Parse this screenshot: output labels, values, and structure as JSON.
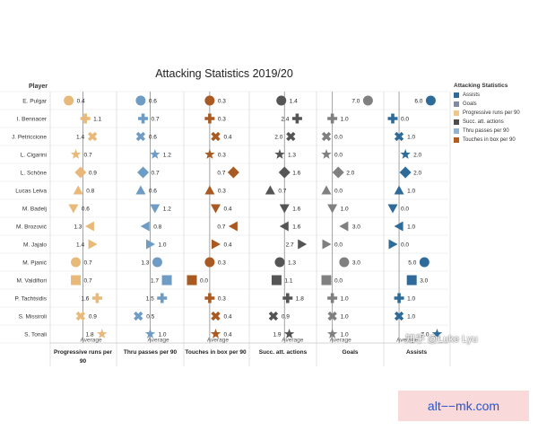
{
  "page": {
    "title": "Attacking Statistics 2019/20",
    "player_header": "Player",
    "average_label": "Average",
    "watermark": "知乎 @Luke Lyu",
    "stamp": "alt−−mk.com"
  },
  "legend": {
    "title": "Attacking Statistics",
    "items": [
      {
        "label": "Assists",
        "color": "#2f6b98",
        "icon": "square-swatch"
      },
      {
        "label": "Goals",
        "color": "#7f8ba0",
        "icon": "square-swatch"
      },
      {
        "label": "Progressive runs per 90",
        "color": "#f2c58a",
        "icon": "square-swatch"
      },
      {
        "label": "Succ. att. actions",
        "color": "#4d4d4d",
        "icon": "square-swatch"
      },
      {
        "label": "Thru passes per 90",
        "color": "#8fb3d3",
        "icon": "square-swatch"
      },
      {
        "label": "Touches in box per 90",
        "color": "#b45c1e",
        "icon": "square-swatch"
      }
    ]
  },
  "chart_data": {
    "type": "scatter",
    "title": "Attacking Statistics 2019/20",
    "players": [
      "E. Pulgar",
      "I. Bennacer",
      "J. Petriccione",
      "L. Cigarini",
      "L. Schöne",
      "Lucas Leiva",
      "M. Badelj",
      "M. Brozović",
      "M. Jajalo",
      "M. Pjanić",
      "M. Valdifiori",
      "P. Tachtsidis",
      "S. Missiroli",
      "S. Tonali"
    ],
    "shapes": [
      "circle",
      "plus",
      "cross",
      "star",
      "diamond",
      "triangle-up",
      "triangle-down",
      "triangle-left",
      "triangle-right",
      "circle",
      "square",
      "plus",
      "cross",
      "star"
    ],
    "columns": [
      {
        "name": "Progressive runs per 90",
        "color": "#e9b97a",
        "values": [
          0.4,
          1.1,
          1.4,
          0.7,
          0.9,
          0.8,
          0.6,
          1.3,
          1.4,
          0.7,
          0.7,
          1.6,
          0.9,
          1.8
        ],
        "labels": [
          "0.4",
          "1.1",
          "1.4",
          "0.7",
          "0.9",
          "0.8",
          "0.6",
          "1.3",
          "1.4",
          "0.7",
          "0.7",
          "1.6",
          "0.9",
          "1.8"
        ],
        "average": 1.0,
        "xlim": [
          0,
          2.0
        ]
      },
      {
        "name": "Thru passes per 90",
        "color": "#6f9cc4",
        "values": [
          0.6,
          0.7,
          0.6,
          1.2,
          0.7,
          0.6,
          1.2,
          0.8,
          1.0,
          1.3,
          1.7,
          1.5,
          0.5,
          1.0
        ],
        "labels": [
          "0.6",
          "0.7",
          "0.6",
          "1.2",
          "0.7",
          "0.6",
          "1.2",
          "0.8",
          "1.0",
          "1.3",
          "1.7",
          "1.5",
          "0.5",
          "1.0"
        ],
        "average": 1.0,
        "xlim": [
          0,
          2.0
        ]
      },
      {
        "name": "Touches in box per 90",
        "color": "#a85a22",
        "values": [
          0.3,
          0.3,
          0.4,
          0.3,
          0.7,
          0.3,
          0.4,
          0.7,
          0.4,
          0.3,
          0.0,
          0.3,
          0.4,
          0.4
        ],
        "labels": [
          "0.3",
          "0.3",
          "0.4",
          "0.3",
          "0.7",
          "0.3",
          "0.4",
          "0.7",
          "0.4",
          "0.3",
          "0.0",
          "0.3",
          "0.4",
          "0.4"
        ],
        "average": 0.3,
        "xlim": [
          0,
          0.8
        ]
      },
      {
        "name": "Succ. att. actions",
        "color": "#555555",
        "values": [
          1.4,
          2.4,
          2.0,
          1.3,
          1.6,
          0.7,
          1.6,
          1.6,
          2.7,
          1.3,
          1.1,
          1.8,
          0.9,
          1.9
        ],
        "labels": [
          "1.4",
          "2.4",
          "2.0",
          "1.3",
          "1.6",
          "0.7",
          "1.6",
          "1.6",
          "2.7",
          "1.3",
          "1.1",
          "1.8",
          "0.9",
          "1.9"
        ],
        "average": 1.6,
        "xlim": [
          0,
          3.0
        ]
      },
      {
        "name": "Goals",
        "color": "#808080",
        "values": [
          7.0,
          1.0,
          0.0,
          0.0,
          2.0,
          0.0,
          1.0,
          3.0,
          0.0,
          3.0,
          0.0,
          1.0,
          1.0,
          1.0
        ],
        "labels": [
          "7.0",
          "1.0",
          "0.0",
          "0.0",
          "2.0",
          "0.0",
          "1.0",
          "3.0",
          "0.0",
          "3.0",
          "0.0",
          "1.0",
          "1.0",
          "1.0"
        ],
        "average": 1.0,
        "xlim": [
          0,
          8.0
        ]
      },
      {
        "name": "Assists",
        "color": "#2f6b98",
        "values": [
          6.0,
          0.0,
          1.0,
          2.0,
          2.0,
          1.0,
          0.0,
          1.0,
          0.0,
          5.0,
          3.0,
          1.0,
          1.0,
          7.0
        ],
        "labels": [
          "6.0",
          "0.0",
          "1.0",
          "2.0",
          "2.0",
          "1.0",
          "0.0",
          "1.0",
          "0.0",
          "5.0",
          "3.0",
          "1.0",
          "1.0",
          "7.0"
        ],
        "average": 1.0,
        "xlim": [
          0,
          7.5
        ]
      }
    ],
    "column_labels": [
      "Progressive runs per 90",
      "Thru passes per 90",
      "Touches in box per 90",
      "Succ. att. actions",
      "Goals",
      "Assists"
    ],
    "legend_position": "right",
    "grid": true
  }
}
